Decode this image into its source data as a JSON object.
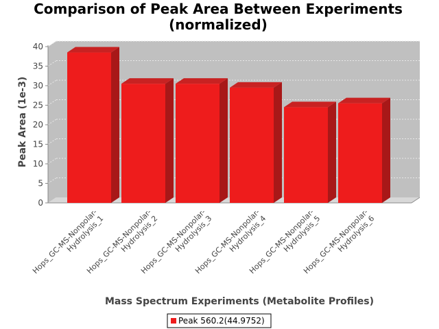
{
  "chart_data": {
    "type": "bar",
    "title": "Comparison of Peak Area Between Experiments (normalized)",
    "title_lines": [
      "Comparison of Peak Area Between Experiments",
      "(normalized)"
    ],
    "xlabel": "Mass Spectrum Experiments (Metabolite Profiles)",
    "ylabel": "Peak Area (1e-3)",
    "ylim": [
      0,
      40
    ],
    "yticks": [
      0,
      5,
      10,
      15,
      20,
      25,
      30,
      35,
      40
    ],
    "categories": [
      "Hops_GC-MS-Nonpolar-Hydrolysis_1",
      "Hops_GC-MS-Nonpolar-Hydrolysis_2",
      "Hops_GC-MS-Nonpolar-Hydrolysis_3",
      "Hops_GC-MS-Nonpolar-Hydrolysis_4",
      "Hops_GC-MS-Nonpolar-Hydrolysis_5",
      "Hops_GC-MS-Nonpolar-Hydrolysis_6"
    ],
    "category_lines": [
      [
        "Hops_GC-MS-Nonpolar-",
        "Hydrolysis_1"
      ],
      [
        "Hops_GC-MS-Nonpolar-",
        "Hydrolysis_2"
      ],
      [
        "Hops_GC-MS-Nonpolar-",
        "Hydrolysis_3"
      ],
      [
        "Hops_GC-MS-Nonpolar-",
        "Hydrolysis_4"
      ],
      [
        "Hops_GC-MS-Nonpolar-",
        "Hydrolysis_5"
      ],
      [
        "Hops_GC-MS-Nonpolar-",
        "Hydrolysis_6"
      ]
    ],
    "series": [
      {
        "name": "Peak 560.2(44.9752)",
        "values": [
          38.5,
          30.5,
          30.5,
          29.5,
          24.5,
          25.5
        ]
      }
    ],
    "legend_position": "bottom",
    "grid": true,
    "colors": {
      "bar_front": "#ee1c1c",
      "bar_side": "#a81818",
      "bar_top": "#c82222",
      "plot_bg": "#c0c0c0",
      "plot_floor": "#d8d8d8",
      "grid": "#e8e8e8"
    }
  }
}
